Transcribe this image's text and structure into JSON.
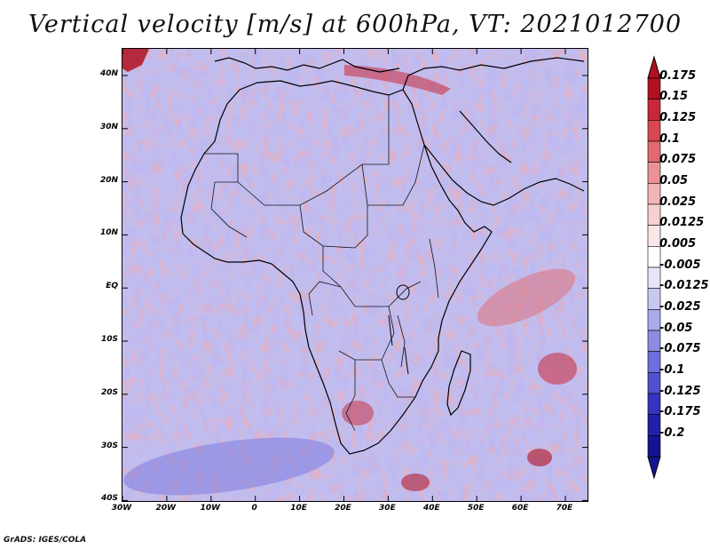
{
  "title": "Vertical velocity [m/s] at 600hPa, VT: 2021012700",
  "credit": "GrADS: IGES/COLA",
  "axes": {
    "lat_labels": [
      "40N",
      "30N",
      "20N",
      "10N",
      "EQ",
      "10S",
      "20S",
      "30S",
      "40S"
    ],
    "lon_labels": [
      "30W",
      "20W",
      "10W",
      "0",
      "10E",
      "20E",
      "30E",
      "40E",
      "50E",
      "60E",
      "70E"
    ]
  },
  "colorbar": {
    "labels": [
      "0.175",
      "0.15",
      "0.125",
      "0.1",
      "0.075",
      "0.05",
      "0.025",
      "0.0125",
      "0.005",
      "-0.005",
      "-0.0125",
      "-0.025",
      "-0.05",
      "-0.075",
      "-0.1",
      "-0.125",
      "-0.175",
      "-0.2"
    ],
    "colors": [
      "#b01020",
      "#c8283a",
      "#d84850",
      "#e26a70",
      "#ec9296",
      "#f3b4b6",
      "#f8d0d2",
      "#fbe6e7",
      "#ffffff",
      "#e6e6f8",
      "#c8c8f0",
      "#aaaaea",
      "#8c8ce2",
      "#6e6edc",
      "#5050d0",
      "#3434c0",
      "#2020a8",
      "#141490"
    ]
  },
  "map": {
    "coastline_color": "#000000",
    "ocean_tint": "#e7e4f5",
    "rising_color": "#e35a5a",
    "sinking_color": "#6a6ae0"
  }
}
